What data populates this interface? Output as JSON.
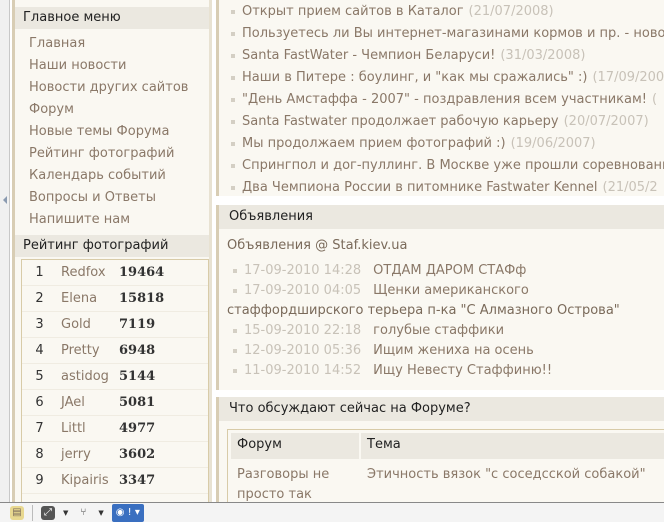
{
  "sidebar": {
    "menu_title": "Главное меню",
    "menu": [
      "Главная",
      "Наши новости",
      "Новости других сайтов",
      "Форум",
      "Новые темы Форума",
      "Рейтинг фотографий",
      "Календарь событий",
      "Вопросы и Ответы",
      "Напишите нам"
    ],
    "rating_title": "Рейтинг фотографий",
    "rating": [
      {
        "rank": "1",
        "user": "Redfox",
        "score": "19464"
      },
      {
        "rank": "2",
        "user": "Elena",
        "score": "15818"
      },
      {
        "rank": "3",
        "user": "Gold",
        "score": "7119"
      },
      {
        "rank": "4",
        "user": "Pretty",
        "score": "6948"
      },
      {
        "rank": "5",
        "user": "astidog",
        "score": "5144"
      },
      {
        "rank": "6",
        "user": "JAel",
        "score": "5081"
      },
      {
        "rank": "7",
        "user": "Littl",
        "score": "4977"
      },
      {
        "rank": "8",
        "user": "jerry",
        "score": "3602"
      },
      {
        "rank": "9",
        "user": "Kipairis",
        "score": "3347"
      }
    ]
  },
  "news": [
    {
      "title": "Открыт прием сайтов в Каталог",
      "date": "(21/07/2008)"
    },
    {
      "title": "Пользуетесь ли Вы интернет-магазинами кормов и пр. - ново",
      "date": ""
    },
    {
      "title": "Santa FastWater - Чемпион Беларуси!",
      "date": "(31/03/2008)"
    },
    {
      "title": "Наши в Питере : боулинг, и \"как мы сражались\" :)",
      "date": "(17/09/200"
    },
    {
      "title": "\"День Амстаффа - 2007\" - поздравления всем участникам!",
      "date": "("
    },
    {
      "title": "Santa Fastwater продолжает рабочую карьеру",
      "date": "(20/07/2007)"
    },
    {
      "title": "Мы продолжаем прием фотографий :)",
      "date": "(19/06/2007)"
    },
    {
      "title": "Спрингпол и дог-пуллинг. В Москве уже прошли соревновани",
      "date": ""
    },
    {
      "title": "Два Чемпиона России в питомнике Fastwater Kennel",
      "date": "(21/05/2"
    }
  ],
  "announcements": {
    "title": "Объявления",
    "source": "Объявления @ Staf.kiev.ua",
    "items": [
      {
        "date": "17-09-2010 14:28",
        "text": "ОТДАМ ДАРОМ СТАФф",
        "cont": ""
      },
      {
        "date": "17-09-2010 04:05",
        "text": "Щенки американского",
        "cont": "стаффордширского терьера п-ка \"С Алмазного Острова\""
      },
      {
        "date": "15-09-2010 22:18",
        "text": "голубые стаффики",
        "cont": ""
      },
      {
        "date": "12-09-2010 05:36",
        "text": "Ищим жениха на осень",
        "cont": ""
      },
      {
        "date": "11-09-2010 14:52",
        "text": "Ищу Невесту Стаффиню!!",
        "cont": ""
      }
    ]
  },
  "forum": {
    "title": "Что обсуждают сейчас на Форуме?",
    "col_forum": "Форум",
    "col_topic": "Тема",
    "rows": [
      {
        "forum": "Разговоры не просто так",
        "topic": "Этичность вязок \"с соседсской собакой\""
      }
    ]
  },
  "taskbar": {
    "icons": [
      "books-icon",
      "resize-icon",
      "fork-icon",
      "compass-icon"
    ]
  }
}
